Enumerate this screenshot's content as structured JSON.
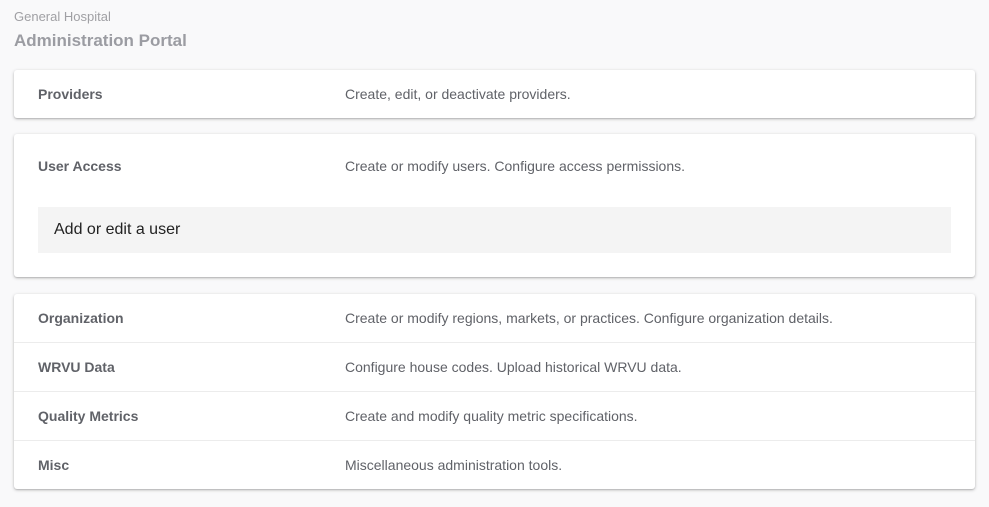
{
  "header": {
    "organization": "General Hospital",
    "title": "Administration Portal"
  },
  "sections": [
    {
      "label": "Providers",
      "description": "Create, edit, or deactivate providers."
    },
    {
      "label": "User Access",
      "description": "Create or modify users. Configure access permissions.",
      "actions": [
        "Add or edit a user"
      ]
    },
    {
      "label": "Organization",
      "description": "Create or modify regions, markets, or practices. Configure organization details."
    },
    {
      "label": "WRVU Data",
      "description": "Configure house codes. Upload historical WRVU data."
    },
    {
      "label": "Quality Metrics",
      "description": "Create and modify quality metric specifications."
    },
    {
      "label": "Misc",
      "description": "Miscellaneous administration tools."
    }
  ]
}
